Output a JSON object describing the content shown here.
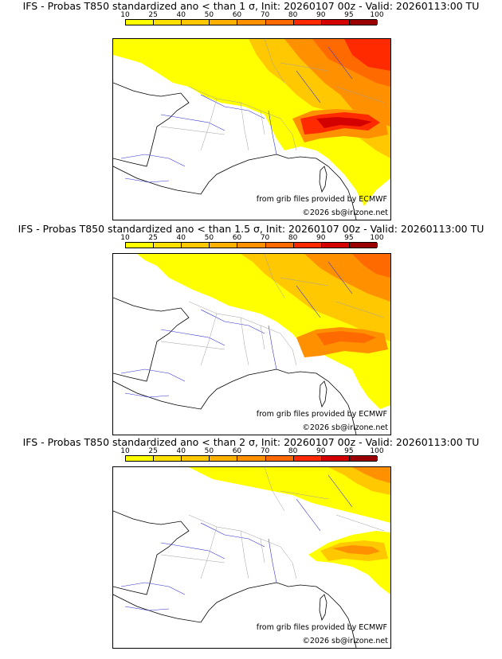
{
  "panels": [
    {
      "title": "IFS - Probas T850  standardized ano < than 1 σ, Init: 20260107 00z - Valid: 20260113:00 TU",
      "credit_source": "from grib files provided by ECMWF",
      "credit_copyright": "©2026 sb@irizone.net"
    },
    {
      "title": "IFS - Probas T850  standardized ano < than 1.5 σ, Init: 20260107 00z - Valid: 20260113:00 TU",
      "credit_source": "from grib files provided by ECMWF",
      "credit_copyright": "©2026 sb@irizone.net"
    },
    {
      "title": "IFS - Probas T850  standardized ano < than 2 σ, Init: 20260107 00z - Valid: 20260113:00 TU",
      "credit_source": "from grib files provided by ECMWF",
      "credit_copyright": "©2026 sb@irizone.net"
    }
  ],
  "colorbar": {
    "ticks": [
      "10",
      "25",
      "40",
      "50",
      "60",
      "70",
      "80",
      "90",
      "95",
      "100"
    ],
    "colors": [
      "#ffff00",
      "#ffe000",
      "#ffc800",
      "#ffb000",
      "#ff9000",
      "#ff6a00",
      "#ff2a00",
      "#d40000",
      "#9a0000",
      "#5a0000"
    ]
  },
  "colors": {
    "land": "#ffffff",
    "coast": "#000000",
    "borders": "#a0a0a0",
    "rivers": "#3030d0",
    "p10": "#ffff00",
    "p25": "#ffe000",
    "p40": "#ffc800",
    "p50": "#ffb000",
    "p60": "#ff9000",
    "p70": "#ff6a00",
    "p80": "#ff2a00",
    "p90": "#d40000"
  }
}
